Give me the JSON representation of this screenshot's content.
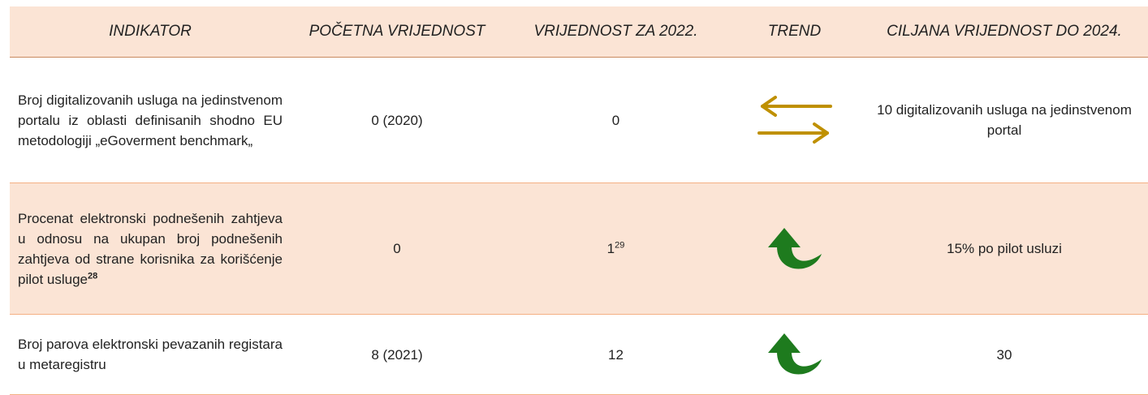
{
  "table": {
    "header": [
      "INDIKATOR",
      "POČETNA VRIJEDNOST",
      "VRIJEDNOST ZA 2022.",
      "TREND",
      "CILJANA VRIJEDNOST DO 2024."
    ],
    "rows": [
      {
        "indicator": "Broj digitalizovanih  usluga na jedinstvenom portalu iz oblasti definisanih shodno EU metodologiji „eGoverment benchmark„",
        "start": "0 (2020)",
        "value": "0",
        "target": "10 digitalizovanih usluga na jedinstvenom portal"
      },
      {
        "indicator": "Procenat elektronski podnešenih zahtjeva u odnosu na ukupan broj podnešenih zahtjeva od strane korisnika za korišćenje pilot usluge",
        "indicator_note": "28",
        "start": "0",
        "value": "1",
        "value_note": "29",
        "target": "15% po pilot usluzi"
      },
      {
        "indicator": "Broj parova elektronski pevazanih registara u metaregistru",
        "start": "8 (2021)",
        "value": "12",
        "target": "30"
      }
    ]
  }
}
